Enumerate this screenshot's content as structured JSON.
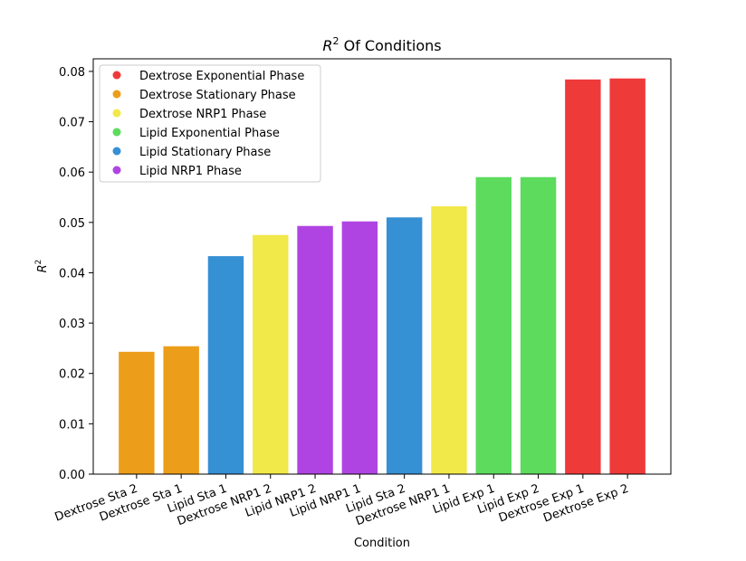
{
  "chart_data": {
    "type": "bar",
    "title_base": "R",
    "title_sup": "2",
    "title_rest": " Of Conditions",
    "xlabel": "Condition",
    "ylabel_base": "R",
    "ylabel_sup": "2",
    "ylim": [
      0,
      0.0825
    ],
    "yticks": [
      "0.00",
      "0.01",
      "0.02",
      "0.03",
      "0.04",
      "0.05",
      "0.06",
      "0.07",
      "0.08"
    ],
    "ytick_values": [
      0,
      0.01,
      0.02,
      0.03,
      0.04,
      0.05,
      0.06,
      0.07,
      0.08
    ],
    "grid": false,
    "legend_position": "top-left",
    "categories": [
      "Dextrose Sta 2",
      "Dextrose Sta 1",
      "Lipid Sta 1",
      "Dextrose NRP1 2",
      "Lipid NRP1 2",
      "Lipid NRP1 1",
      "Lipid Sta 2",
      "Dextrose NRP1 1",
      "Lipid Exp 1",
      "Lipid Exp 2",
      "Dextrose Exp 1",
      "Dextrose Exp 2"
    ],
    "values": [
      0.0243,
      0.0254,
      0.0433,
      0.0475,
      0.0493,
      0.0502,
      0.051,
      0.0532,
      0.059,
      0.059,
      0.0784,
      0.0786
    ],
    "bar_groups": [
      1,
      1,
      4,
      2,
      5,
      5,
      4,
      2,
      3,
      3,
      0,
      0
    ],
    "legend": [
      {
        "name": "Dextrose Exponential Phase",
        "color": "#ef3a3a"
      },
      {
        "name": "Dextrose Stationary Phase",
        "color": "#ec9e1a"
      },
      {
        "name": "Dextrose NRP1 Phase",
        "color": "#f1e84a"
      },
      {
        "name": "Lipid Exponential Phase",
        "color": "#5cdb5c"
      },
      {
        "name": "Lipid Stationary Phase",
        "color": "#3690d4"
      },
      {
        "name": "Lipid NRP1 Phase",
        "color": "#b044e2"
      }
    ]
  }
}
